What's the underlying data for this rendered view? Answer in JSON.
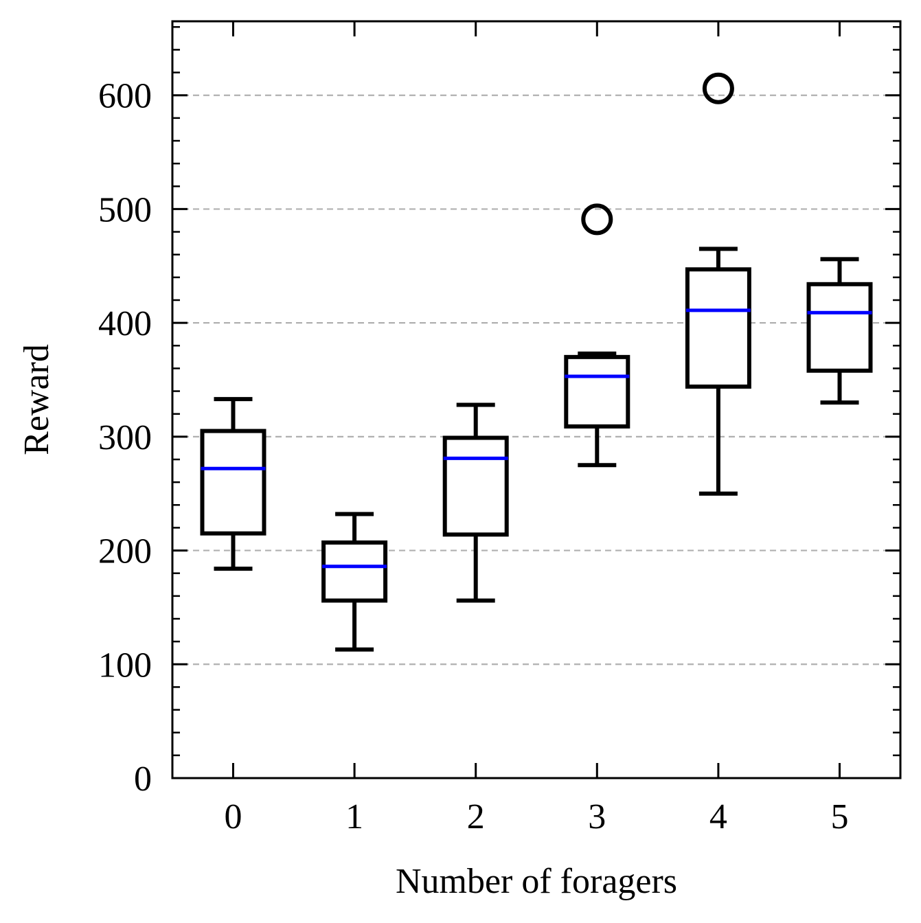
{
  "chart_data": {
    "type": "box",
    "xlabel": "Number of foragers",
    "ylabel": "Reward",
    "ylim": [
      0,
      665
    ],
    "yticks": [
      0,
      100,
      200,
      300,
      400,
      500,
      600
    ],
    "y_minor_step": 20,
    "grid": "horizontal-dashed",
    "categories": [
      "0",
      "1",
      "2",
      "3",
      "4",
      "5"
    ],
    "boxes": [
      {
        "category": "0",
        "whisker_low": 184,
        "q1": 215,
        "median": 272,
        "q3": 305,
        "whisker_high": 333,
        "outliers": []
      },
      {
        "category": "1",
        "whisker_low": 113,
        "q1": 156,
        "median": 186,
        "q3": 207,
        "whisker_high": 232,
        "outliers": []
      },
      {
        "category": "2",
        "whisker_low": 156,
        "q1": 214,
        "median": 281,
        "q3": 299,
        "whisker_high": 328,
        "outliers": []
      },
      {
        "category": "3",
        "whisker_low": 275,
        "q1": 309,
        "median": 353,
        "q3": 370,
        "whisker_high": 373,
        "outliers": [
          491
        ]
      },
      {
        "category": "4",
        "whisker_low": 250,
        "q1": 344,
        "median": 411,
        "q3": 447,
        "whisker_high": 465,
        "outliers": [
          606
        ]
      },
      {
        "category": "5",
        "whisker_low": 330,
        "q1": 358,
        "median": 409,
        "q3": 434,
        "whisker_high": 456,
        "outliers": []
      }
    ],
    "colors": {
      "box": "#000000",
      "median": "#0000ff",
      "grid": "#b0b0b0"
    }
  }
}
